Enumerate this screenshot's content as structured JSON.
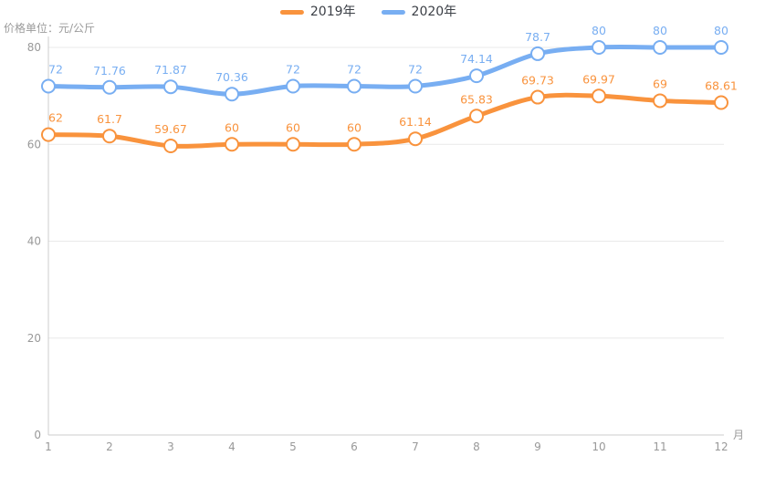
{
  "unit_label": "价格单位：元/公斤",
  "colors": {
    "series_2019": "#f9933d",
    "series_2020": "#78aef2",
    "axis_text": "#999999",
    "grid_line": "#e9e9e9",
    "axis_line": "#cccccc",
    "legend_text": "#3b3f46",
    "marker_fill": "#ffffff",
    "background": "#ffffff"
  },
  "chart_data": {
    "type": "line",
    "title": "",
    "ylabel": "价格单位：元/公斤",
    "xlabel": "月",
    "x": [
      1,
      2,
      3,
      4,
      5,
      6,
      7,
      8,
      9,
      10,
      11,
      12
    ],
    "xtick_labels": [
      "1",
      "2",
      "3",
      "4",
      "5",
      "6",
      "7",
      "8",
      "9",
      "10",
      "11",
      "12"
    ],
    "ylim": [
      0,
      80
    ],
    "yticks": [
      0,
      20,
      40,
      60,
      80
    ],
    "grid": true,
    "smooth": true,
    "legend_position": "top-center",
    "series": [
      {
        "name": "2019年",
        "color": "#f9933d",
        "values": [
          62,
          61.7,
          59.67,
          60,
          60,
          60,
          61.14,
          65.83,
          69.73,
          69.97,
          69,
          68.61
        ],
        "labels": [
          "62",
          "61.7",
          "59.67",
          "60",
          "60",
          "60",
          "61.14",
          "65.83",
          "69.73",
          "69.97",
          "69",
          "68.61"
        ]
      },
      {
        "name": "2020年",
        "color": "#78aef2",
        "values": [
          72,
          71.76,
          71.87,
          70.36,
          72,
          72,
          72,
          74.14,
          78.7,
          80,
          80,
          80
        ],
        "labels": [
          "72",
          "71.76",
          "71.87",
          "70.36",
          "72",
          "72",
          "72",
          "74.14",
          "78.7",
          "80",
          "80",
          "80"
        ]
      }
    ]
  }
}
